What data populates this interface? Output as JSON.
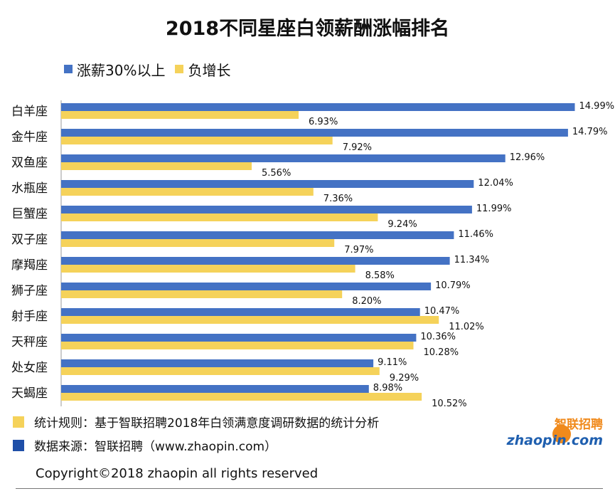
{
  "title": "2018不同星座白领薪酬涨幅排名",
  "colors": {
    "blue": "#4472C4",
    "yellow": "#F5D25A"
  },
  "chart_data": {
    "type": "bar",
    "orientation": "horizontal",
    "title": "2018不同星座白领薪酬涨幅排名",
    "categories": [
      "白羊座",
      "金牛座",
      "双鱼座",
      "水瓶座",
      "巨蟹座",
      "双子座",
      "摩羯座",
      "狮子座",
      "射手座",
      "天秤座",
      "处女座",
      "天蝎座"
    ],
    "series": [
      {
        "name": "涨薪30%以上",
        "color": "#4472C4",
        "values": [
          14.99,
          14.79,
          12.96,
          12.04,
          11.99,
          11.46,
          11.34,
          10.79,
          10.47,
          10.36,
          9.11,
          8.98
        ],
        "labels": [
          "14.99%",
          "14.79%",
          "12.96%",
          "12.04%",
          "11.99%",
          "11.46%",
          "11.34%",
          "10.79%",
          "10.47%",
          "10.36%",
          "9.11%",
          "8.98%"
        ]
      },
      {
        "name": "负增长",
        "color": "#F5D25A",
        "values": [
          6.93,
          7.92,
          5.56,
          7.36,
          9.24,
          7.97,
          8.58,
          8.2,
          11.02,
          10.28,
          9.29,
          10.52
        ],
        "labels": [
          "6.93%",
          "7.92%",
          "5.56%",
          "7.36%",
          "9.24%",
          "7.97%",
          "8.58%",
          "8.20%",
          "11.02%",
          "10.28%",
          "9.29%",
          "10.52%"
        ]
      }
    ],
    "xlim": [
      0,
      15
    ],
    "grid": false,
    "legend": "top-left"
  },
  "footer": {
    "rule": "统计规则：基于智联招聘2018年白领满意度调研数据的统计分析",
    "source": "数据来源：智联招聘（www.zhaopin.com）",
    "copyright": "Copyright©2018 zhaopin all rights reserved"
  },
  "logo": {
    "top_text": "智联招聘",
    "bottom_text": "zhaopin.com"
  }
}
